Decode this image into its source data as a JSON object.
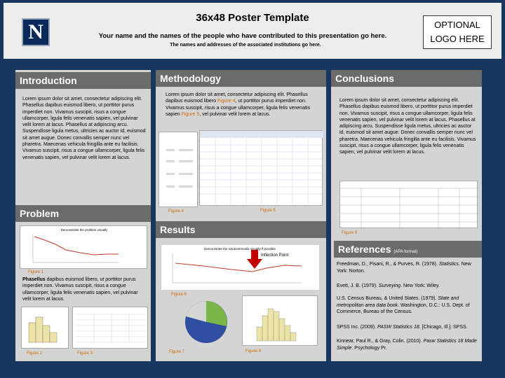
{
  "header": {
    "logo": "N",
    "title": "36x48 Poster Template",
    "subtitle": "Your name and the names of the people who have contributed to this presentation go here.",
    "institutions": "The names and addresses of the associated institutions go here.",
    "optional_logo": [
      "OPTIONAL",
      "LOGO HERE"
    ]
  },
  "introduction": {
    "heading": "Introduction",
    "text": "Lorem ipsum dolor sit amet, consectetur adipiscing elit. Phasellus dapibus euismod libero, ut porttitor purus imperdiet non. Vivamus suscipit, risus a congue ullamcorper, ligula felis venenatis sapien, vel pulvinar velit lorem at lacus. Phasellus at adipiscing arcu. Suspendisse ligula metus, ultricies ac auctor id, euismod sit amet augue. Donec convallis semper nunc vel pharetra. Maecenas vehicula fringilla ante eu facilisis. Vivamus suscipit, risus a congue ullamcorper, ligula felis venenatis sapien, vel pulvinar velit lorem at lacus."
  },
  "problem": {
    "heading": "Problem",
    "chart_title": "Demonstrate the problem visually",
    "figure1": "Figure 1",
    "text_bold": "Phasellus",
    "text": " dapibus euismod libero, ut porttitor purus imperdiet non. Vivamus suscipit, risus a congue ullamcorper, ligula felis venenatis sapien, vel pulvinar velit lorem at lacus.",
    "figure2": "Figure 2",
    "figure3": "Figure 3"
  },
  "methodology": {
    "heading": "Methodology",
    "text_a": "Lorem ipsum dolor sit amet, consectetur adipiscing elit. Phasellus dapibus euismod libero ",
    "fig_ref_a": "Figure 4",
    "text_b": ", ut porttitor purus imperdiet non. Vivamus suscipit, risus a congue ullamcorper, ligula felis venenatis sapien ",
    "fig_ref_b": "Figure 5",
    "text_c": ", vel pulvinar velit lorem at lacus.",
    "figure4": "Figure 4",
    "figure5": "Figure 5"
  },
  "results": {
    "heading": "Results",
    "chart_title": "Demonstrate the solution/results visually if possible",
    "annotation": "Inflection Point",
    "figure6": "Figure 6",
    "figure7": "Figure 7",
    "figure8": "Figure 8"
  },
  "conclusions": {
    "heading": "Conclusions",
    "text": "Lorem ipsum dolor sit amet, consectetur adipiscing elit. Phasellus dapibus euismod libero, ut porttitor purus imperdiet non. Vivamus suscipit, risus a congue ullamcorper, ligula felis venenatis sapien, vel pulvinar velit lorem at lacus. Phasellus at adipiscing arcu. Suspendisse ligula metus, ultricies ac auctor id, euismod sit amet augue. Donec convallis semper nunc vel pharetra. Maecenas vehicula fringilla ante eu facilisis. Vivamus suscipit, risus a congue ullamcorper, ligula felis venenatis sapien, vel pulvinar velit lorem at lacus.",
    "figure9": "Figure 9"
  },
  "references": {
    "heading": "References",
    "format": "(APA format)",
    "r1_a": "Freedman, D., Pisani, R., & Purves, R. (1978). ",
    "r1_i": "Statistics",
    "r1_b": ". New York: Norton.",
    "r2_a": "Evett, J. B. (1979). ",
    "r2_i": "Surveying",
    "r2_b": ". New York: Wiley.",
    "r3_a": "U.S. Census Bureau, & United States. (1979). ",
    "r3_i": "State and metropolitan area data book",
    "r3_b": ". Washington, D.C.: U.S. Dept. of Commerce, Bureau of the Census.",
    "r4_a": "SPSS Inc. (2009). ",
    "r4_i": "PASW Statistics 18",
    "r4_b": ". [Chicago, Ill.]: SPSS.",
    "r5_a": "Kinnear, Paul R., & Gray, Colin. (2010). ",
    "r5_i": "Pasw Statistics 18 Made Simple",
    "r5_b": ". Psychology Pr."
  },
  "colors": {
    "background": "#17375e",
    "panel": "#d4d4d4",
    "heading_bar": "#6b6b6b",
    "figure_label": "#d06a00",
    "series": "#c0392b"
  }
}
